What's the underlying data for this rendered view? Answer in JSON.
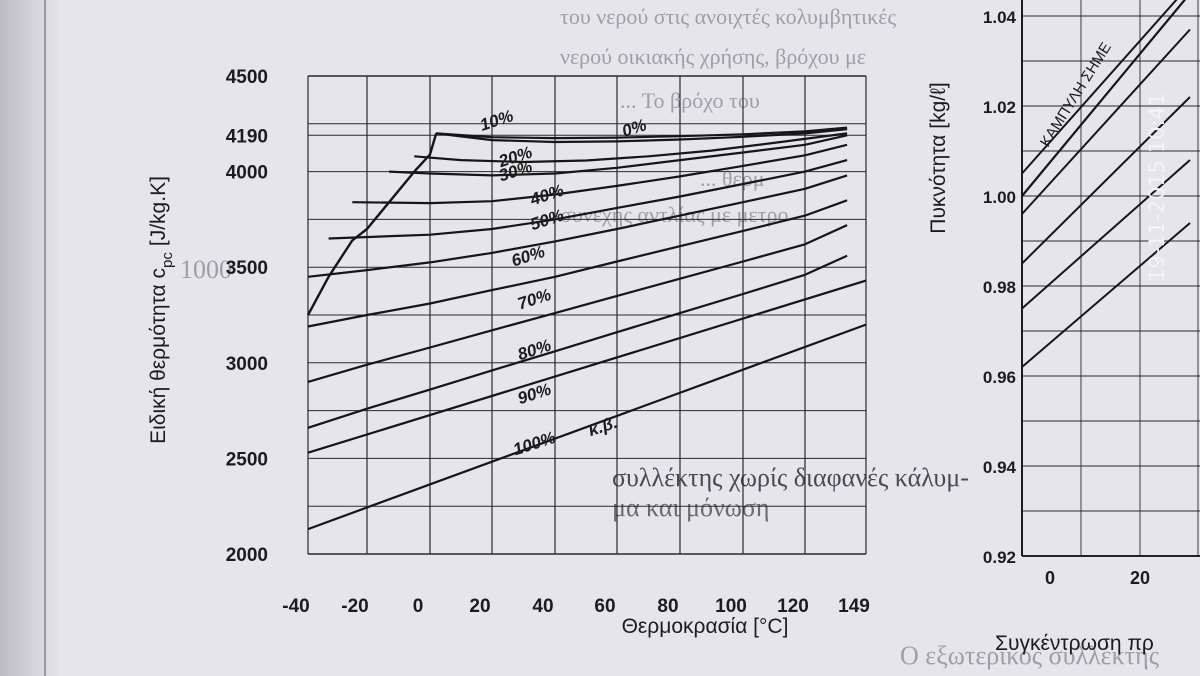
{
  "background_text": {
    "lines": [
      "του νερού στις ανοιχτές κολυμβητικές",
      "νερού οικιακής χρήσης, βρόχου με",
      "... Το βρόχο του",
      "... θερμ",
      "συνεχής αντλίας με μετρο",
      "1000"
    ],
    "caption": "συλλέκτης χωρίς διαφανές κάλυμ-",
    "caption2": "μα και μόνωση",
    "bottom": "Ο εξωτερικός συλλέκτης"
  },
  "chart_data": [
    {
      "type": "line",
      "title": "",
      "xlabel": "Θερμοκρασία [°C]",
      "ylabel": "Ειδική θερμότητα c",
      "ylabel_sub": "pc",
      "ylabel_units": "[J/kg.K]",
      "xticks": [
        "-40",
        "-20",
        "0",
        "20",
        "40",
        "60",
        "80",
        "100",
        "120",
        "149"
      ],
      "yticks": [
        "2000",
        "2500",
        "3000",
        "3500",
        "4000",
        "4190",
        "4500"
      ],
      "xlim": [
        -40,
        149
      ],
      "ylim": [
        2000,
        4500
      ],
      "grid": true,
      "series": [
        {
          "name": "0%",
          "x": [
            2,
            20,
            40,
            60,
            80,
            100,
            120,
            140
          ],
          "values": [
            4200,
            4180,
            4175,
            4178,
            4185,
            4195,
            4210,
            4230
          ]
        },
        {
          "name": "10%",
          "x": [
            2,
            20,
            40,
            60,
            80,
            100,
            120,
            140
          ],
          "values": [
            4200,
            4165,
            4155,
            4158,
            4168,
            4182,
            4200,
            4222
          ]
        },
        {
          "name": "20%",
          "x": [
            -5,
            10,
            30,
            50,
            70,
            90,
            110,
            140
          ],
          "values": [
            4080,
            4060,
            4050,
            4058,
            4080,
            4110,
            4150,
            4200
          ]
        },
        {
          "name": "30%",
          "x": [
            -13,
            0,
            20,
            40,
            60,
            80,
            100,
            120,
            140
          ],
          "values": [
            4000,
            3990,
            3980,
            3990,
            4020,
            4060,
            4100,
            4140,
            4190
          ]
        },
        {
          "name": "40%",
          "x": [
            -25,
            0,
            20,
            40,
            60,
            80,
            100,
            120,
            140
          ],
          "values": [
            3840,
            3835,
            3845,
            3880,
            3925,
            3975,
            4030,
            4085,
            4140
          ]
        },
        {
          "name": "50%",
          "x": [
            -33,
            0,
            20,
            40,
            60,
            80,
            100,
            120,
            140
          ],
          "values": [
            3650,
            3670,
            3700,
            3750,
            3810,
            3870,
            3935,
            4000,
            4060
          ]
        },
        {
          "name": "60%",
          "x": [
            -40,
            -20,
            0,
            20,
            40,
            60,
            80,
            100,
            120,
            140
          ],
          "values": [
            3450,
            3485,
            3525,
            3575,
            3635,
            3700,
            3770,
            3840,
            3910,
            3980
          ]
        },
        {
          "name": "70%",
          "x": [
            -40,
            -20,
            0,
            20,
            40,
            60,
            80,
            100,
            120,
            140
          ],
          "values": [
            3190,
            3250,
            3310,
            3380,
            3450,
            3530,
            3610,
            3690,
            3770,
            3850
          ]
        },
        {
          "name": "80%",
          "x": [
            -40,
            -20,
            0,
            20,
            40,
            60,
            80,
            100,
            120,
            140
          ],
          "values": [
            2900,
            2990,
            3080,
            3170,
            3260,
            3350,
            3440,
            3530,
            3620,
            3720
          ]
        },
        {
          "name": "90%",
          "x": [
            -40,
            -20,
            0,
            20,
            40,
            60,
            80,
            100,
            120,
            140
          ],
          "values": [
            2660,
            2760,
            2860,
            2960,
            3060,
            3160,
            3260,
            3360,
            3460,
            3560
          ]
        },
        {
          "name": "100%",
          "x": [
            -40,
            149
          ],
          "values": [
            2530,
            3430
          ]
        }
      ],
      "freezing_curve": {
        "x": [
          -40,
          -33,
          -25,
          -20,
          -13,
          -5,
          0,
          2
        ],
        "values": [
          3250,
          3450,
          3640,
          3700,
          3840,
          4000,
          4090,
          4200
        ]
      },
      "lowest_curve": {
        "x": [
          -40,
          149
        ],
        "values": [
          2130,
          3200
        ]
      },
      "curve_labels": [
        {
          "text": "10%",
          "x": 22,
          "y": 4240
        },
        {
          "text": "0%",
          "x": 66,
          "y": 4200
        },
        {
          "text": "20%",
          "x": 28,
          "y": 4050
        },
        {
          "text": "30%",
          "x": 28,
          "y": 3975
        },
        {
          "text": "40%",
          "x": 38,
          "y": 3850
        },
        {
          "text": "50%",
          "x": 38,
          "y": 3720
        },
        {
          "text": "60%",
          "x": 32,
          "y": 3530
        },
        {
          "text": "70%",
          "x": 34,
          "y": 3305
        },
        {
          "text": "80%",
          "x": 34,
          "y": 3040
        },
        {
          "text": "90%",
          "x": 34,
          "y": 2810
        },
        {
          "text": "100%",
          "x": 34,
          "y": 2550
        },
        {
          "text": "κ.β.",
          "x": 56,
          "y": 2640
        }
      ]
    },
    {
      "type": "line",
      "title": "",
      "xlabel": "Συγκέντρωση πρ",
      "ylabel": "Πυκνότητα [kg/ℓ]",
      "xticks": [
        "0",
        "20"
      ],
      "yticks": [
        "0.92",
        "0.94",
        "0.96",
        "0.98",
        "1.00",
        "1.02",
        "1.04"
      ],
      "ylim": [
        0.92,
        1.04
      ],
      "grid": true,
      "annotation": "ΚΑΜΠΥΛΗ ΣΗΜΕ",
      "series": [
        {
          "x": [
            0,
            30
          ],
          "values": [
            1.005,
            1.047
          ]
        },
        {
          "x": [
            0,
            30
          ],
          "values": [
            0.996,
            1.037
          ]
        },
        {
          "x": [
            0,
            30
          ],
          "values": [
            0.985,
            1.022
          ]
        },
        {
          "x": [
            0,
            30
          ],
          "values": [
            0.975,
            1.008
          ]
        },
        {
          "x": [
            0,
            30
          ],
          "values": [
            0.962,
            0.994
          ]
        }
      ],
      "freezing_curve": {
        "x": [
          0,
          30
        ],
        "values": [
          1.0,
          1.045
        ]
      }
    }
  ],
  "stamp": "19-11-2015 10:41"
}
